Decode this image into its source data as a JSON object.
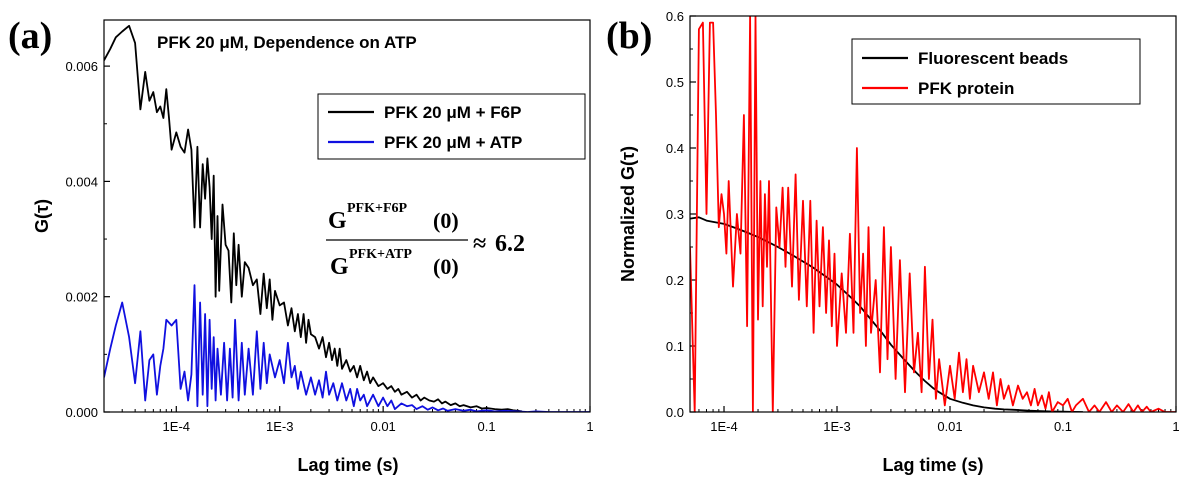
{
  "chart_data": [
    {
      "type": "line",
      "panel_label": "(a)",
      "title": "PFK 20 μM, Dependence on ATP",
      "xlabel": "Lag time (s)",
      "ylabel": "G(τ)",
      "xscale": "log",
      "xlim": [
        2e-05,
        1
      ],
      "ylim": [
        0,
        0.0068
      ],
      "x_ticks": [
        0.0001,
        0.001,
        0.01,
        0.1,
        1
      ],
      "x_tick_labels": [
        "1E-4",
        "1E-3",
        "0.01",
        "0.1",
        "1"
      ],
      "y_ticks": [
        0,
        0.002,
        0.004,
        0.006
      ],
      "y_tick_labels": [
        "0.000",
        "0.002",
        "0.004",
        "0.006"
      ],
      "legend_position": "top-right",
      "annotation": {
        "num_base": "G",
        "num_sup": "PFK+F6P",
        "num_arg": "(0)",
        "den_base": "G",
        "den_sup": "PFK+ATP",
        "den_arg": "(0)",
        "rel": "≈",
        "value": "6.2"
      },
      "series": [
        {
          "name": "PFK 20 μM + F6P",
          "color": "#000000",
          "x": [
            2e-05,
            2.3e-05,
            2.6e-05,
            3e-05,
            3.5e-05,
            4e-05,
            4.5e-05,
            5e-05,
            5.5e-05,
            6e-05,
            6.5e-05,
            7e-05,
            7.5e-05,
            8e-05,
            8.5e-05,
            9e-05,
            0.0001,
            0.00011,
            0.00012,
            0.00013,
            0.00014,
            0.00015,
            0.00016,
            0.00017,
            0.00018,
            0.00019,
            0.0002,
            0.00021,
            0.00022,
            0.00023,
            0.00024,
            0.00025,
            0.00026,
            0.00028,
            0.0003,
            0.00032,
            0.00034,
            0.00036,
            0.00038,
            0.0004,
            0.00043,
            0.00046,
            0.0005,
            0.00055,
            0.0006,
            0.00065,
            0.0007,
            0.00075,
            0.0008,
            0.00085,
            0.0009,
            0.001,
            0.0011,
            0.0012,
            0.0013,
            0.0014,
            0.0015,
            0.0016,
            0.0017,
            0.0018,
            0.0019,
            0.002,
            0.0022,
            0.0024,
            0.0026,
            0.0028,
            0.003,
            0.0032,
            0.0034,
            0.0036,
            0.0038,
            0.004,
            0.0044,
            0.0048,
            0.0052,
            0.0056,
            0.006,
            0.0065,
            0.007,
            0.0075,
            0.008,
            0.009,
            0.01,
            0.011,
            0.012,
            0.013,
            0.014,
            0.015,
            0.017,
            0.019,
            0.021,
            0.023,
            0.025,
            0.028,
            0.031,
            0.034,
            0.037,
            0.04,
            0.045,
            0.05,
            0.055,
            0.06,
            0.07,
            0.08,
            0.09,
            0.1,
            0.12,
            0.14,
            0.16,
            0.18,
            0.2,
            0.22
          ],
          "y": [
            0.0061,
            0.0063,
            0.0065,
            0.0066,
            0.0067,
            0.0064,
            0.00525,
            0.0059,
            0.0054,
            0.00555,
            0.0052,
            0.0053,
            0.0051,
            0.0056,
            0.0051,
            0.00455,
            0.00485,
            0.0046,
            0.0045,
            0.0049,
            0.00455,
            0.0032,
            0.0046,
            0.0032,
            0.0043,
            0.0037,
            0.0044,
            0.0039,
            0.003,
            0.0041,
            0.002,
            0.0034,
            0.0021,
            0.0036,
            0.0029,
            0.0028,
            0.0019,
            0.0031,
            0.0022,
            0.0029,
            0.002,
            0.0026,
            0.0025,
            0.0022,
            0.0023,
            0.0017,
            0.0024,
            0.0018,
            0.0023,
            0.0016,
            0.0021,
            0.00185,
            0.0019,
            0.0015,
            0.0018,
            0.0014,
            0.0017,
            0.0013,
            0.0017,
            0.0012,
            0.0016,
            0.00135,
            0.0013,
            0.0011,
            0.0013,
            0.00095,
            0.0012,
            0.0009,
            0.0011,
            0.0008,
            0.0011,
            0.00075,
            0.0009,
            0.0007,
            0.0008,
            0.0006,
            0.0008,
            0.00055,
            0.0007,
            0.0005,
            0.0006,
            0.00045,
            0.0005,
            0.0004,
            0.00045,
            0.00035,
            0.0004,
            0.0003,
            0.00035,
            0.00025,
            0.0003,
            0.0002,
            0.00025,
            0.0002,
            0.00018,
            0.00022,
            0.00015,
            0.00018,
            0.00012,
            0.00015,
            0.0001,
            0.00012,
            8e-05,
            0.0001,
            6e-05,
            7e-05,
            5e-05,
            4e-05,
            5e-05,
            3e-05,
            2e-05,
            1e-05
          ]
        },
        {
          "name": "PFK 20 μM + ATP",
          "color": "#1010e0",
          "x": [
            2e-05,
            2.3e-05,
            2.6e-05,
            3e-05,
            3.5e-05,
            4e-05,
            4.5e-05,
            5e-05,
            5.5e-05,
            6e-05,
            6.5e-05,
            7e-05,
            7.5e-05,
            8e-05,
            9e-05,
            0.0001,
            0.00011,
            0.00012,
            0.00013,
            0.00014,
            0.00015,
            0.00016,
            0.00017,
            0.00018,
            0.00019,
            0.0002,
            0.00021,
            0.00022,
            0.00023,
            0.00024,
            0.00025,
            0.00027,
            0.00029,
            0.00031,
            0.00033,
            0.00035,
            0.00037,
            0.0004,
            0.00043,
            0.00046,
            0.0005,
            0.00055,
            0.0006,
            0.00065,
            0.0007,
            0.00075,
            0.0008,
            0.0009,
            0.001,
            0.0011,
            0.0012,
            0.0013,
            0.0014,
            0.0015,
            0.0016,
            0.0018,
            0.002,
            0.0022,
            0.0024,
            0.0026,
            0.0028,
            0.003,
            0.0033,
            0.0036,
            0.004,
            0.0044,
            0.0048,
            0.0052,
            0.0056,
            0.006,
            0.0065,
            0.007,
            0.008,
            0.009,
            0.01,
            0.011,
            0.012,
            0.013,
            0.015,
            0.017,
            0.019,
            0.021,
            0.024,
            0.027,
            0.03,
            0.034,
            0.038,
            0.042,
            0.05,
            0.06,
            0.07,
            0.08,
            0.1,
            0.12,
            0.15,
            0.2,
            0.25,
            0.3,
            0.4,
            0.5,
            0.6,
            0.7,
            0.8,
            1
          ],
          "y": [
            0.0006,
            0.0011,
            0.0015,
            0.0019,
            0.0013,
            0.0005,
            0.0014,
            0.0002,
            0.0009,
            0.001,
            0.0003,
            0.0008,
            0.0011,
            0.0016,
            0.0015,
            0.0016,
            0.0004,
            0.0007,
            0.0002,
            0.00065,
            0.0022,
            0.0001,
            0.0019,
            0.0003,
            0.0017,
            0.0001,
            0.0016,
            0.0004,
            0.0013,
            0.0002,
            0.0011,
            0.0003,
            0.0012,
            0.0002,
            0.0011,
            0.00025,
            0.0016,
            0.0002,
            0.0012,
            0.0003,
            0.0011,
            0.0003,
            0.0014,
            0.0004,
            0.0012,
            0.0005,
            0.001,
            0.0006,
            0.0009,
            0.0005,
            0.0012,
            0.0006,
            0.0008,
            0.0004,
            0.0007,
            0.0003,
            0.0006,
            0.0003,
            0.00055,
            0.00025,
            0.0007,
            0.0003,
            0.0005,
            0.0002,
            0.0005,
            0.0002,
            0.0004,
            0.0001,
            0.0004,
            0.0002,
            0.0003,
            0.0001,
            0.0003,
            0.0001,
            0.00025,
            0.0001,
            0.0002,
            5e-05,
            0.00015,
            0.0001,
            0.00012,
            5e-05,
            0.0001,
            4e-05,
            8e-05,
            3e-05,
            6e-05,
            2e-05,
            5e-05,
            2e-05,
            4e-05,
            1e-05,
            3e-05,
            1e-05,
            2e-05,
            1e-05,
            0.0,
            1e-05,
            0.0,
            0.0,
            0.0,
            0.0,
            0.0,
            0.0
          ]
        }
      ]
    },
    {
      "type": "line",
      "panel_label": "(b)",
      "title": "",
      "xlabel": "Lag time (s)",
      "ylabel": "Normalized G(τ)",
      "xscale": "log",
      "xlim": [
        5e-05,
        1
      ],
      "ylim": [
        0,
        0.6
      ],
      "x_ticks": [
        0.0001,
        0.001,
        0.01,
        0.1,
        1
      ],
      "x_tick_labels": [
        "1E-4",
        "1E-3",
        "0.01",
        "0.1",
        "1"
      ],
      "y_ticks": [
        0,
        0.1,
        0.2,
        0.3,
        0.4,
        0.5,
        0.6
      ],
      "y_tick_labels": [
        "0.0",
        "0.1",
        "0.2",
        "0.3",
        "0.4",
        "0.5",
        "0.6"
      ],
      "legend_position": "top-right",
      "series": [
        {
          "name": "Fluorescent beads",
          "color": "#000000",
          "x": [
            5e-05,
            6e-05,
            7e-05,
            8e-05,
            0.0001,
            0.00013,
            0.00016,
            0.0002,
            0.00025,
            0.0003,
            0.0004,
            0.0005,
            0.0006,
            0.0007,
            0.0008,
            0.001,
            0.0013,
            0.0016,
            0.002,
            0.0025,
            0.003,
            0.004,
            0.005,
            0.006,
            0.007,
            0.008,
            0.01,
            0.013,
            0.016,
            0.02,
            0.025,
            0.03,
            0.04,
            0.05,
            0.06,
            0.07,
            0.08,
            0.1,
            0.12,
            0.15
          ],
          "y": [
            0.293,
            0.295,
            0.29,
            0.288,
            0.285,
            0.278,
            0.272,
            0.265,
            0.257,
            0.25,
            0.238,
            0.228,
            0.22,
            0.212,
            0.205,
            0.193,
            0.175,
            0.16,
            0.14,
            0.12,
            0.102,
            0.078,
            0.06,
            0.047,
            0.037,
            0.03,
            0.02,
            0.014,
            0.01,
            0.007,
            0.005,
            0.004,
            0.003,
            0.002,
            0.0015,
            0.001,
            0.0008,
            0.0005,
            0.0002,
            0.0
          ]
        },
        {
          "name": "PFK protein",
          "color": "#ff0000",
          "x": [
            5e-05,
            5.5e-05,
            6e-05,
            6.5e-05,
            7e-05,
            7.5e-05,
            8e-05,
            8.5e-05,
            9e-05,
            9.5e-05,
            0.0001,
            0.000105,
            0.00011,
            0.00012,
            0.00013,
            0.00014,
            0.00015,
            0.00016,
            0.00017,
            0.00018,
            0.00019,
            0.0002,
            0.00021,
            0.00022,
            0.00023,
            0.00024,
            0.00025,
            0.00027,
            0.00029,
            0.00031,
            0.00033,
            0.00035,
            0.00037,
            0.0004,
            0.00043,
            0.00046,
            0.0005,
            0.00054,
            0.00058,
            0.00062,
            0.00066,
            0.0007,
            0.00075,
            0.0008,
            0.00085,
            0.0009,
            0.00095,
            0.001,
            0.0011,
            0.0012,
            0.0013,
            0.0014,
            0.0015,
            0.0016,
            0.0017,
            0.0018,
            0.0019,
            0.002,
            0.0022,
            0.0024,
            0.0026,
            0.0028,
            0.003,
            0.0033,
            0.0036,
            0.004,
            0.0044,
            0.0048,
            0.0052,
            0.0056,
            0.006,
            0.0065,
            0.007,
            0.0075,
            0.008,
            0.009,
            0.01,
            0.011,
            0.012,
            0.013,
            0.014,
            0.015,
            0.016,
            0.018,
            0.02,
            0.022,
            0.024,
            0.026,
            0.028,
            0.03,
            0.033,
            0.036,
            0.04,
            0.044,
            0.048,
            0.052,
            0.056,
            0.06,
            0.065,
            0.07,
            0.075,
            0.08,
            0.09,
            0.1,
            0.11,
            0.12,
            0.13,
            0.15,
            0.17,
            0.19,
            0.21,
            0.24,
            0.27,
            0.3,
            0.34,
            0.38,
            0.42,
            0.46,
            0.5,
            0.55,
            0.6,
            0.7,
            0.8,
            0.9,
            1
          ],
          "y": [
            0.25,
            0.0,
            0.58,
            0.59,
            0.3,
            0.59,
            0.59,
            0.45,
            0.28,
            0.33,
            0.3,
            0.24,
            0.35,
            0.19,
            0.3,
            0.24,
            0.45,
            0.13,
            0.6,
            0.0,
            0.6,
            0.14,
            0.35,
            0.16,
            0.33,
            0.22,
            0.35,
            0.0,
            0.31,
            0.25,
            0.34,
            0.22,
            0.34,
            0.19,
            0.36,
            0.17,
            0.32,
            0.16,
            0.32,
            0.12,
            0.29,
            0.16,
            0.28,
            0.15,
            0.26,
            0.13,
            0.24,
            0.1,
            0.21,
            0.12,
            0.27,
            0.12,
            0.4,
            0.15,
            0.24,
            0.1,
            0.28,
            0.12,
            0.2,
            0.06,
            0.28,
            0.08,
            0.25,
            0.05,
            0.23,
            0.03,
            0.21,
            0.06,
            0.12,
            0.03,
            0.22,
            0.05,
            0.14,
            0.02,
            0.08,
            0.01,
            0.07,
            0.02,
            0.09,
            0.03,
            0.08,
            0.02,
            0.07,
            0.03,
            0.06,
            0.02,
            0.06,
            0.01,
            0.05,
            0.02,
            0.04,
            0.01,
            0.04,
            0.02,
            0.03,
            0.01,
            0.035,
            0.01,
            0.025,
            0.005,
            0.03,
            0.0,
            0.015,
            0.01,
            0.02,
            0.0,
            0.01,
            0.02,
            0.0,
            0.01,
            0.0,
            0.015,
            0.0,
            0.01,
            0.0,
            0.012,
            0.0,
            0.01,
            0.0,
            0.008,
            0.0,
            0.005,
            0.0,
            0.0,
            0.0
          ]
        }
      ]
    }
  ]
}
